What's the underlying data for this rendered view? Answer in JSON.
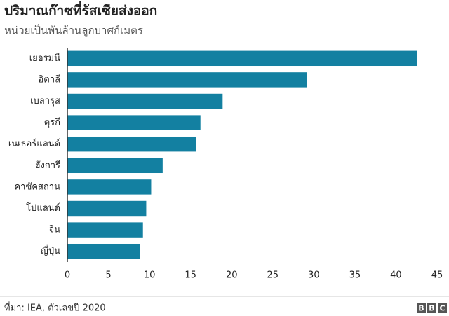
{
  "chart_data": {
    "type": "bar",
    "orientation": "horizontal",
    "title": "ปริมาณก๊าซที่รัสเซียส่งออก",
    "subtitle": "หน่วยเป็นพันล้านลูกบาศก์เมตร",
    "categories": [
      "เยอรมนี",
      "อิตาลี",
      "เบลารุส",
      "ตุรกี",
      "เนเธอร์แลนด์",
      "ฮังการี",
      "คาซัคสถาน",
      "โปแลนด์",
      "จีน",
      "ญี่ปุ่น"
    ],
    "values": [
      42.6,
      29.2,
      18.9,
      16.2,
      15.7,
      11.6,
      10.2,
      9.6,
      9.2,
      8.8
    ],
    "color": "#1380a1",
    "xlim": [
      0,
      45
    ],
    "xticks": [
      0,
      5,
      10,
      15,
      20,
      25,
      30,
      35,
      40,
      45
    ],
    "grid": false,
    "source": "ที่มา: IEA, ตัวเลขปี 2020",
    "logo": [
      "B",
      "B",
      "C"
    ]
  }
}
